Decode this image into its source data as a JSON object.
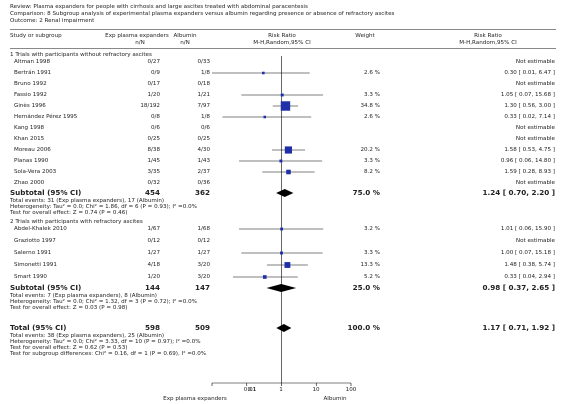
{
  "review": {
    "review_line": "Review:  Plasma expanders for people with cirrhosis and large ascites treated with abdominal paracentesis",
    "comparison_line": "Comparison:  8 Subgroup analysis of experimental plasma expanders versus albumin regarding presence or absence of refractory ascites",
    "outcome_line": "Outcome:  2 Renal impairment"
  },
  "headers": {
    "study": "Study or subgroup",
    "exp": "Exp plasma expanders",
    "exp_nN": "n/N",
    "alb": "Albumin",
    "alb_nN": "n/N",
    "rr": "Risk Ratio",
    "rr_method": "M-H,Random,95% CI",
    "weight": "Weight",
    "rr2": "Risk Ratio",
    "rr2_method": "M-H,Random,95% CI"
  },
  "groups": [
    {
      "title": "1 Trials with participants without refractory ascites",
      "studies": [
        {
          "name": "Altman 1998",
          "exp": "0/27",
          "alb": "0/33",
          "weight": "",
          "ci_text": "Not estimable"
        },
        {
          "name": "Bertrán 1991",
          "exp": "0/9",
          "alb": "1/8",
          "weight": "2.6 %",
          "ci_text": "0.30 [ 0.01, 6.47 ]"
        },
        {
          "name": "Bruno 1992",
          "exp": "0/17",
          "alb": "0/18",
          "weight": "",
          "ci_text": "Not estimable"
        },
        {
          "name": "Fassio 1992",
          "exp": "1/20",
          "alb": "1/21",
          "weight": "3.3 %",
          "ci_text": "1.05 [ 0.07, 15.68 ]"
        },
        {
          "name": "Ginès 1996",
          "exp": "18/192",
          "alb": "7/97",
          "weight": "34.8 %",
          "ci_text": "1.30 [ 0.56, 3.00 ]"
        },
        {
          "name": "Hernández Pérez 1995",
          "exp": "0/8",
          "alb": "1/8",
          "weight": "2.6 %",
          "ci_text": "0.33 [ 0.02, 7.14 ]"
        },
        {
          "name": "Kang 1998",
          "exp": "0/6",
          "alb": "0/6",
          "weight": "",
          "ci_text": "Not estimable"
        },
        {
          "name": "Khan 2015",
          "exp": "0/25",
          "alb": "0/25",
          "weight": "",
          "ci_text": "Not estimable"
        },
        {
          "name": "Moreau 2006",
          "exp": "8/38",
          "alb": "4/30",
          "weight": "20.2 %",
          "ci_text": "1.58 [ 0.53, 4.75 ]"
        },
        {
          "name": "Planas 1990",
          "exp": "1/45",
          "alb": "1/43",
          "weight": "3.3 %",
          "ci_text": "0.96 [ 0.06, 14.80 ]"
        },
        {
          "name": "Sola-Vera 2003",
          "exp": "3/35",
          "alb": "2/37",
          "weight": "8.2 %",
          "ci_text": "1.59 [ 0.28, 8.93 ]"
        },
        {
          "name": "Zhao  2000",
          "exp": "0/32",
          "alb": "0/36",
          "weight": "",
          "ci_text": "Not estimable"
        }
      ],
      "subtotal": {
        "label": "Subtotal (95% CI)",
        "exp": "454",
        "alb": "362",
        "weight": "75.0 %",
        "ci_text": "1.24 [ 0.70, 2.20 ]"
      },
      "notes": [
        "Total events: 31 (Exp plasma expanders), 17 (Albumin)",
        "Heterogeneity: Tau² = 0.0; Chi² = 1.86, df = 6 (P = 0.93); I² =0.0%",
        "Test for overall effect: Z = 0.74 (P = 0.46)"
      ]
    },
    {
      "title": "2 Trials with participants with refractory ascites",
      "studies": [
        {
          "name": "Abdel-Khalek 2010",
          "exp": "1/67",
          "alb": "1/68",
          "weight": "3.2 %",
          "ci_text": "1.01 [ 0.06, 15.90 ]"
        },
        {
          "name": "Graziotto 1997",
          "exp": "0/12",
          "alb": "0/12",
          "weight": "",
          "ci_text": "Not estimable"
        },
        {
          "name": "Salerno 1991",
          "exp": "1/27",
          "alb": "1/27",
          "weight": "3.3 %",
          "ci_text": "1.00 [ 0.07, 15.18 ]"
        },
        {
          "name": "Simonetti 1991",
          "exp": "4/18",
          "alb": "3/20",
          "weight": "13.3 %",
          "ci_text": "1.48 [ 0.38, 5.74 ]"
        },
        {
          "name": "Smart 1990",
          "exp": "1/20",
          "alb": "3/20",
          "weight": "5.2 %",
          "ci_text": "0.33 [ 0.04, 2.94 ]"
        }
      ],
      "subtotal": {
        "label": "Subtotal (95% CI)",
        "exp": "144",
        "alb": "147",
        "weight": "25.0 %",
        "ci_text": "0.98 [ 0.37, 2.65 ]"
      },
      "notes": [
        "Total events: 7 (Exp plasma expanders), 8 (Albumin)",
        "Heterogeneity: Tau² = 0.0; Chi² = 1.32, df = 3 (P = 0.72); I² =0.0%",
        "Test for overall effect: Z = 0.03 (P = 0.98)"
      ]
    }
  ],
  "total": {
    "label": "Total (95% CI)",
    "exp": "598",
    "alb": "509",
    "weight": "100.0 %",
    "ci_text": "1.17 [ 0.71, 1.92 ]",
    "notes": [
      "Total events: 38 (Exp plasma expanders), 25 (Albumin)",
      "Heterogeneity: Tau² = 0.0; Chi² = 3.33, df = 10 (P = 0.97); I² =0.0%",
      "Test for overall effect: Z = 0.62 (P = 0.53)",
      "Test for subgroup differences: Chi² = 0.16, df = 1 (P = 0.69), I² =0.0%"
    ]
  },
  "axis": {
    "ticks": [
      "0.01",
      "0.1",
      "1",
      "10",
      "100"
    ],
    "left_label": "Exp plasma expanders",
    "right_label": "Albumin"
  },
  "chart_data": {
    "type": "forest",
    "scale": "log",
    "xlim": [
      0.01,
      100
    ],
    "ticks": [
      0.01,
      0.1,
      1,
      10,
      100
    ],
    "studies": [
      {
        "group": 1,
        "name": "Altman 1998",
        "rr": null,
        "lo": null,
        "hi": null,
        "weight": 0
      },
      {
        "group": 1,
        "name": "Bertrán 1991",
        "rr": 0.3,
        "lo": 0.01,
        "hi": 6.47,
        "weight": 2.6
      },
      {
        "group": 1,
        "name": "Bruno 1992",
        "rr": null,
        "lo": null,
        "hi": null,
        "weight": 0
      },
      {
        "group": 1,
        "name": "Fassio 1992",
        "rr": 1.05,
        "lo": 0.07,
        "hi": 15.68,
        "weight": 3.3
      },
      {
        "group": 1,
        "name": "Ginès 1996",
        "rr": 1.3,
        "lo": 0.56,
        "hi": 3.0,
        "weight": 34.8
      },
      {
        "group": 1,
        "name": "Hernández Pérez 1995",
        "rr": 0.33,
        "lo": 0.02,
        "hi": 7.14,
        "weight": 2.6
      },
      {
        "group": 1,
        "name": "Kang 1998",
        "rr": null,
        "lo": null,
        "hi": null,
        "weight": 0
      },
      {
        "group": 1,
        "name": "Khan 2015",
        "rr": null,
        "lo": null,
        "hi": null,
        "weight": 0
      },
      {
        "group": 1,
        "name": "Moreau 2006",
        "rr": 1.58,
        "lo": 0.53,
        "hi": 4.75,
        "weight": 20.2
      },
      {
        "group": 1,
        "name": "Planas 1990",
        "rr": 0.96,
        "lo": 0.06,
        "hi": 14.8,
        "weight": 3.3
      },
      {
        "group": 1,
        "name": "Sola-Vera 2003",
        "rr": 1.59,
        "lo": 0.28,
        "hi": 8.93,
        "weight": 8.2
      },
      {
        "group": 1,
        "name": "Zhao  2000",
        "rr": null,
        "lo": null,
        "hi": null,
        "weight": 0
      },
      {
        "group": 2,
        "name": "Abdel-Khalek 2010",
        "rr": 1.01,
        "lo": 0.06,
        "hi": 15.9,
        "weight": 3.2
      },
      {
        "group": 2,
        "name": "Graziotto 1997",
        "rr": null,
        "lo": null,
        "hi": null,
        "weight": 0
      },
      {
        "group": 2,
        "name": "Salerno 1991",
        "rr": 1.0,
        "lo": 0.07,
        "hi": 15.18,
        "weight": 3.3
      },
      {
        "group": 2,
        "name": "Simonetti 1991",
        "rr": 1.48,
        "lo": 0.38,
        "hi": 5.74,
        "weight": 13.3
      },
      {
        "group": 2,
        "name": "Smart 1990",
        "rr": 0.33,
        "lo": 0.04,
        "hi": 2.94,
        "weight": 5.2
      }
    ],
    "summaries": [
      {
        "name": "Subtotal (95% CI)",
        "group": 1,
        "rr": 1.24,
        "lo": 0.7,
        "hi": 2.2
      },
      {
        "name": "Subtotal (95% CI)",
        "group": 2,
        "rr": 0.98,
        "lo": 0.37,
        "hi": 2.65
      },
      {
        "name": "Total (95% CI)",
        "group": 0,
        "rr": 1.17,
        "lo": 0.71,
        "hi": 1.92
      }
    ],
    "colors": {
      "marker": "#1f2fa8",
      "diamond": "#000000"
    }
  }
}
